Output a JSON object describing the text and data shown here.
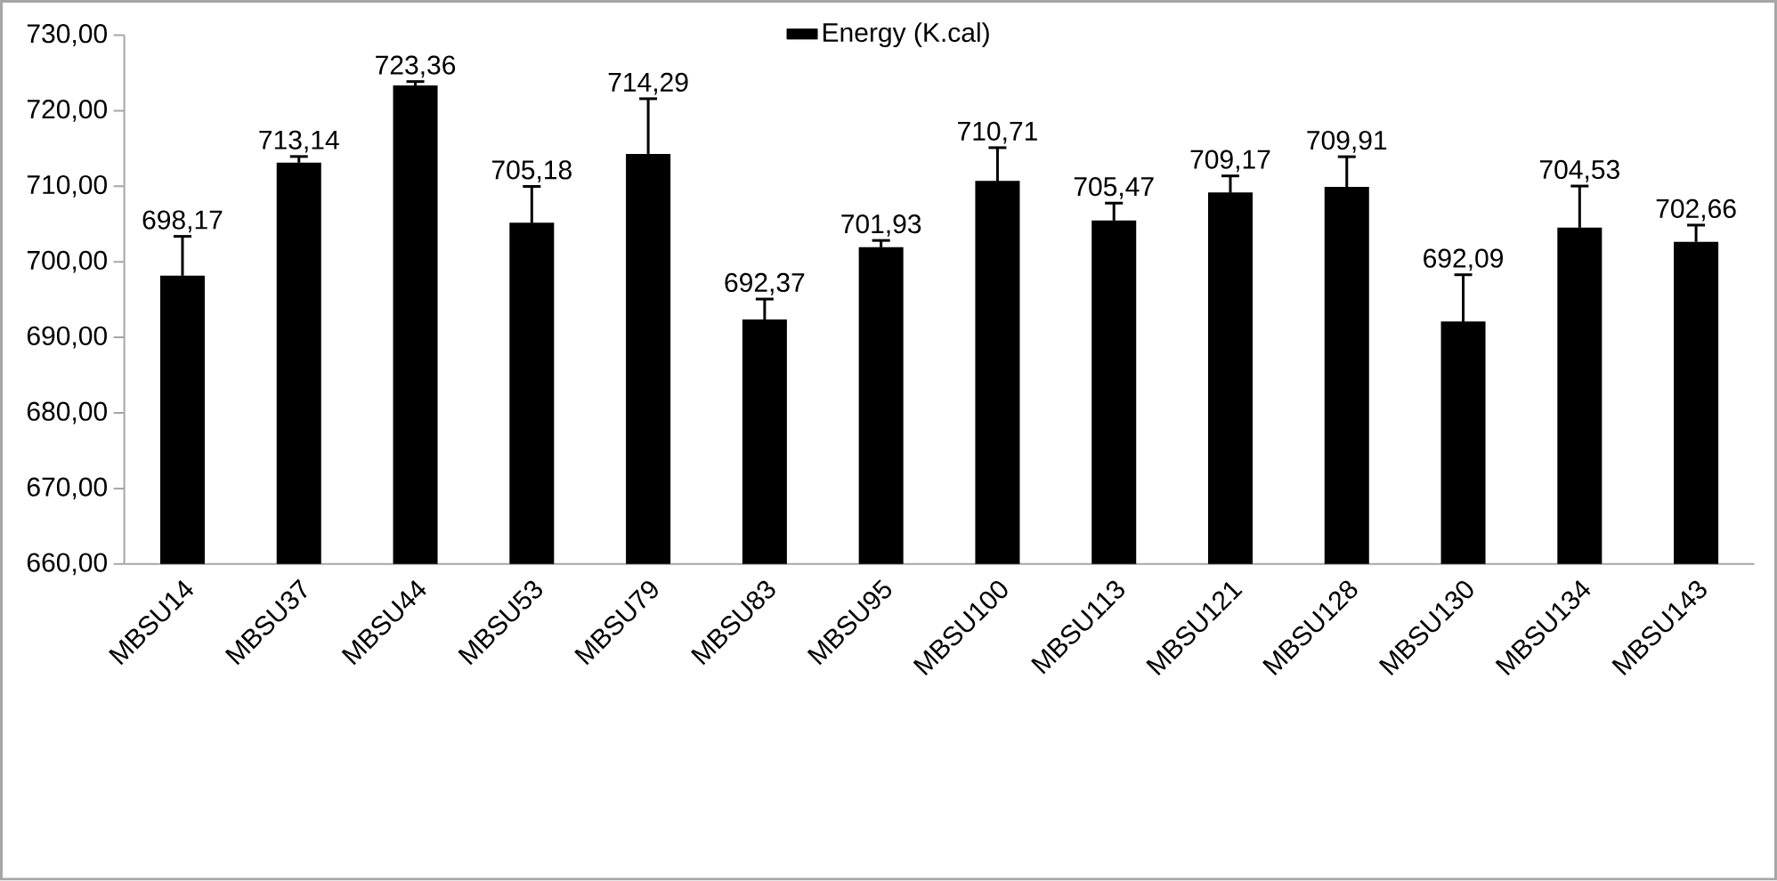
{
  "chart_data": {
    "type": "bar",
    "categories": [
      "MBSU14",
      "MBSU37",
      "MBSU44",
      "MBSU53",
      "MBSU79",
      "MBSU83",
      "MBSU95",
      "MBSU100",
      "MBSU113",
      "MBSU121",
      "MBSU128",
      "MBSU130",
      "MBSU134",
      "MBSU143"
    ],
    "series": [
      {
        "name": "Energy (K.cal)",
        "color": "#000000",
        "values": [
          698.17,
          713.14,
          723.36,
          705.18,
          714.29,
          692.37,
          701.93,
          710.71,
          705.47,
          709.17,
          709.91,
          692.09,
          704.53,
          702.66
        ],
        "errors": [
          5.2,
          0.8,
          0.5,
          4.8,
          7.3,
          2.7,
          0.9,
          4.4,
          2.3,
          2.2,
          4.0,
          6.2,
          5.5,
          2.2
        ],
        "value_labels": [
          "698,17",
          "713,14",
          "723,36",
          "705,18",
          "714,29",
          "692,37",
          "701,93",
          "710,71",
          "705,47",
          "709,17",
          "709,91",
          "692,09",
          "704,53",
          "702,66"
        ]
      }
    ],
    "ylim": [
      660,
      730
    ],
    "yticks": [
      {
        "value": 660,
        "label": "660,00"
      },
      {
        "value": 670,
        "label": "670,00"
      },
      {
        "value": 680,
        "label": "680,00"
      },
      {
        "value": 690,
        "label": "690,00"
      },
      {
        "value": 700,
        "label": "700,00"
      },
      {
        "value": 710,
        "label": "710,00"
      },
      {
        "value": 720,
        "label": "720,00"
      },
      {
        "value": 730,
        "label": "730,00"
      }
    ],
    "legend": "top"
  }
}
